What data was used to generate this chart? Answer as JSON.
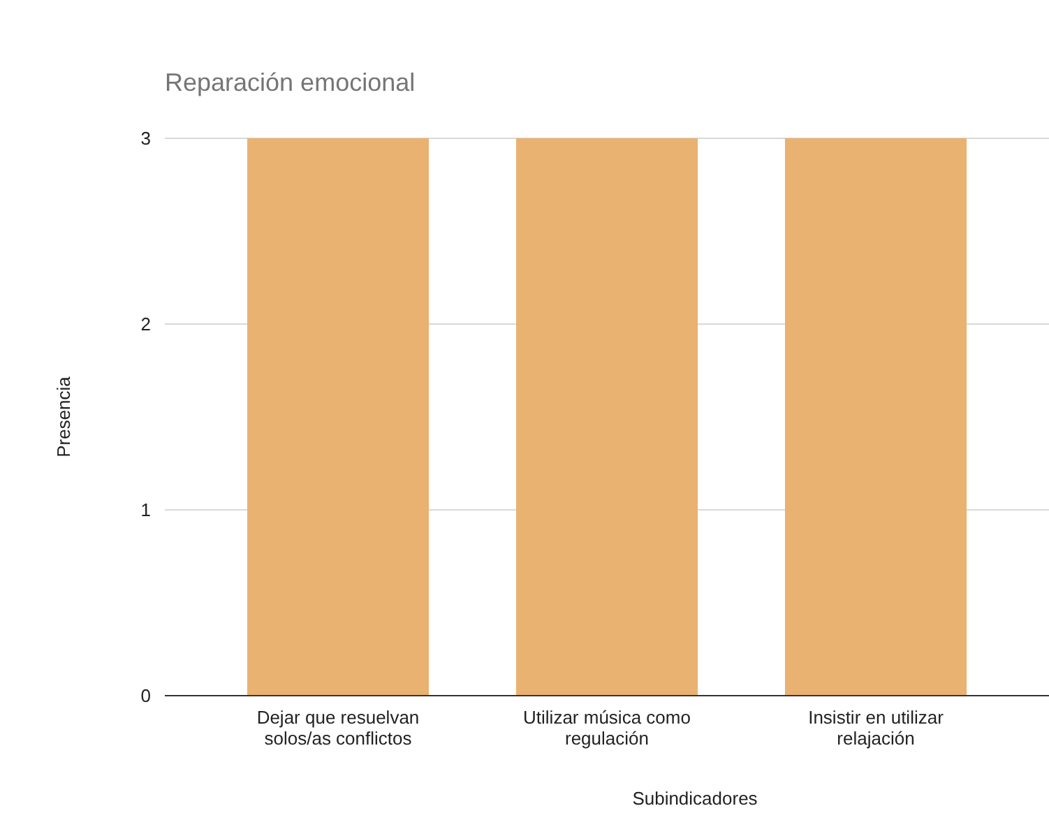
{
  "chart_data": {
    "type": "bar",
    "title": "Reparación emocional",
    "xlabel": "Subindicadores",
    "ylabel": "Presencia",
    "categories": [
      "Dejar que resuelvan solos/as conflictos",
      "Utilizar música como regulación",
      "Insistir en utilizar relajación"
    ],
    "values": [
      3,
      3,
      3
    ],
    "color": "#e9b270",
    "ylim": [
      0,
      3
    ],
    "yticks": [
      0,
      1,
      2,
      3
    ],
    "grid": "y"
  }
}
